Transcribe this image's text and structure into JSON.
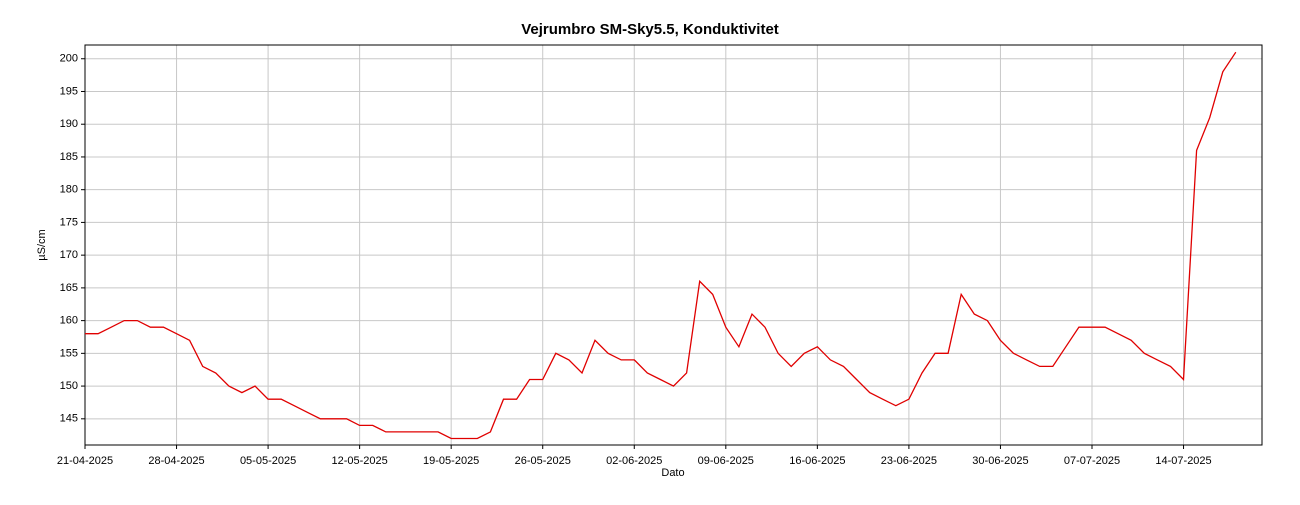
{
  "chart_data": {
    "type": "line",
    "title": "Vejrumbro SM-Sky5.5, Konduktivitet",
    "xlabel": "Dato",
    "ylabel": "µS/cm",
    "x": [
      "21-04-2025",
      "22-04-2025",
      "23-04-2025",
      "24-04-2025",
      "25-04-2025",
      "26-04-2025",
      "27-04-2025",
      "28-04-2025",
      "29-04-2025",
      "30-04-2025",
      "01-05-2025",
      "02-05-2025",
      "03-05-2025",
      "04-05-2025",
      "05-05-2025",
      "06-05-2025",
      "07-05-2025",
      "08-05-2025",
      "09-05-2025",
      "10-05-2025",
      "11-05-2025",
      "12-05-2025",
      "13-05-2025",
      "14-05-2025",
      "15-05-2025",
      "16-05-2025",
      "17-05-2025",
      "18-05-2025",
      "19-05-2025",
      "20-05-2025",
      "21-05-2025",
      "22-05-2025",
      "23-05-2025",
      "24-05-2025",
      "25-05-2025",
      "26-05-2025",
      "27-05-2025",
      "28-05-2025",
      "29-05-2025",
      "30-05-2025",
      "31-05-2025",
      "01-06-2025",
      "02-06-2025",
      "03-06-2025",
      "04-06-2025",
      "05-06-2025",
      "06-06-2025",
      "07-06-2025",
      "08-06-2025",
      "09-06-2025",
      "10-06-2025",
      "11-06-2025",
      "12-06-2025",
      "13-06-2025",
      "14-06-2025",
      "15-06-2025",
      "16-06-2025",
      "17-06-2025",
      "18-06-2025",
      "19-06-2025",
      "20-06-2025",
      "21-06-2025",
      "22-06-2025",
      "23-06-2025",
      "24-06-2025",
      "25-06-2025",
      "26-06-2025",
      "27-06-2025",
      "28-06-2025",
      "29-06-2025",
      "30-06-2025",
      "01-07-2025",
      "02-07-2025",
      "03-07-2025",
      "04-07-2025",
      "05-07-2025",
      "06-07-2025",
      "07-07-2025",
      "08-07-2025",
      "09-07-2025",
      "10-07-2025",
      "11-07-2025",
      "12-07-2025",
      "13-07-2025",
      "14-07-2025",
      "15-07-2025",
      "16-07-2025",
      "17-07-2025",
      "18-07-2025"
    ],
    "series": [
      {
        "name": "Konduktivitet",
        "color": "#e00000",
        "values": [
          158,
          158,
          159,
          160,
          160,
          159,
          159,
          158,
          157,
          153,
          152,
          150,
          149,
          150,
          148,
          148,
          147,
          146,
          145,
          145,
          145,
          144,
          144,
          143,
          143,
          143,
          143,
          143,
          142,
          142,
          142,
          143,
          148,
          148,
          151,
          151,
          155,
          154,
          152,
          157,
          155,
          154,
          154,
          152,
          151,
          150,
          152,
          166,
          164,
          159,
          156,
          161,
          159,
          155,
          153,
          155,
          156,
          154,
          153,
          151,
          149,
          148,
          147,
          148,
          152,
          155,
          155,
          164,
          161,
          160,
          157,
          155,
          154,
          153,
          153,
          156,
          159,
          159,
          159,
          158,
          157,
          155,
          154,
          153,
          151,
          186,
          191,
          198,
          201
        ]
      }
    ],
    "xlim": [
      "21-04-2025",
      "20-07-2025"
    ],
    "xticks": [
      "21-04-2025",
      "28-04-2025",
      "05-05-2025",
      "12-05-2025",
      "19-05-2025",
      "26-05-2025",
      "02-06-2025",
      "09-06-2025",
      "16-06-2025",
      "23-06-2025",
      "30-06-2025",
      "07-07-2025",
      "14-07-2025"
    ],
    "ylim": [
      141,
      202.1
    ],
    "yticks": [
      145,
      150,
      155,
      160,
      165,
      170,
      175,
      180,
      185,
      190,
      195,
      200
    ],
    "grid": true
  }
}
